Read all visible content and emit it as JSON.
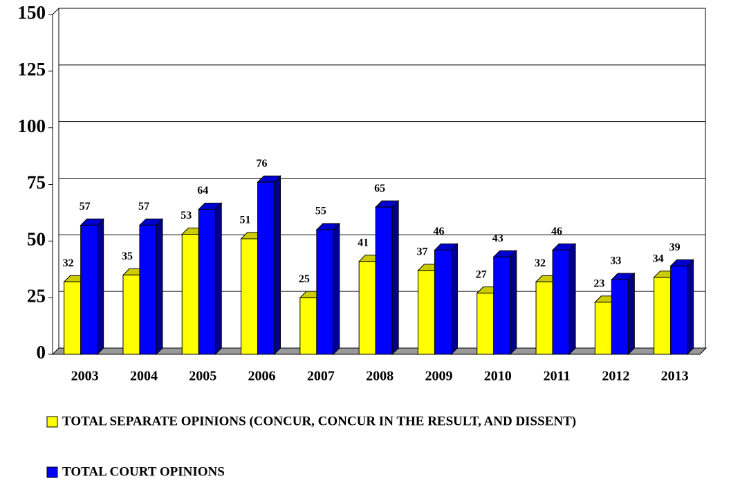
{
  "chart_data": {
    "type": "bar",
    "categories": [
      "2003",
      "2004",
      "2005",
      "2006",
      "2007",
      "2008",
      "2009",
      "2010",
      "2011",
      "2012",
      "2013"
    ],
    "series": [
      {
        "name": "TOTAL SEPARATE OPINIONS (CONCUR, CONCUR IN THE RESULT, AND DISSENT)",
        "color": "#ffff00",
        "values": [
          32,
          35,
          53,
          51,
          25,
          41,
          37,
          27,
          32,
          23,
          34
        ]
      },
      {
        "name": "TOTAL COURT OPINIONS",
        "color": "#0000ff",
        "values": [
          57,
          57,
          64,
          76,
          55,
          65,
          46,
          43,
          46,
          33,
          39
        ]
      }
    ],
    "ylim": [
      0,
      150
    ],
    "yticks": [
      0,
      25,
      50,
      75,
      100,
      125,
      150
    ],
    "grid": true
  }
}
